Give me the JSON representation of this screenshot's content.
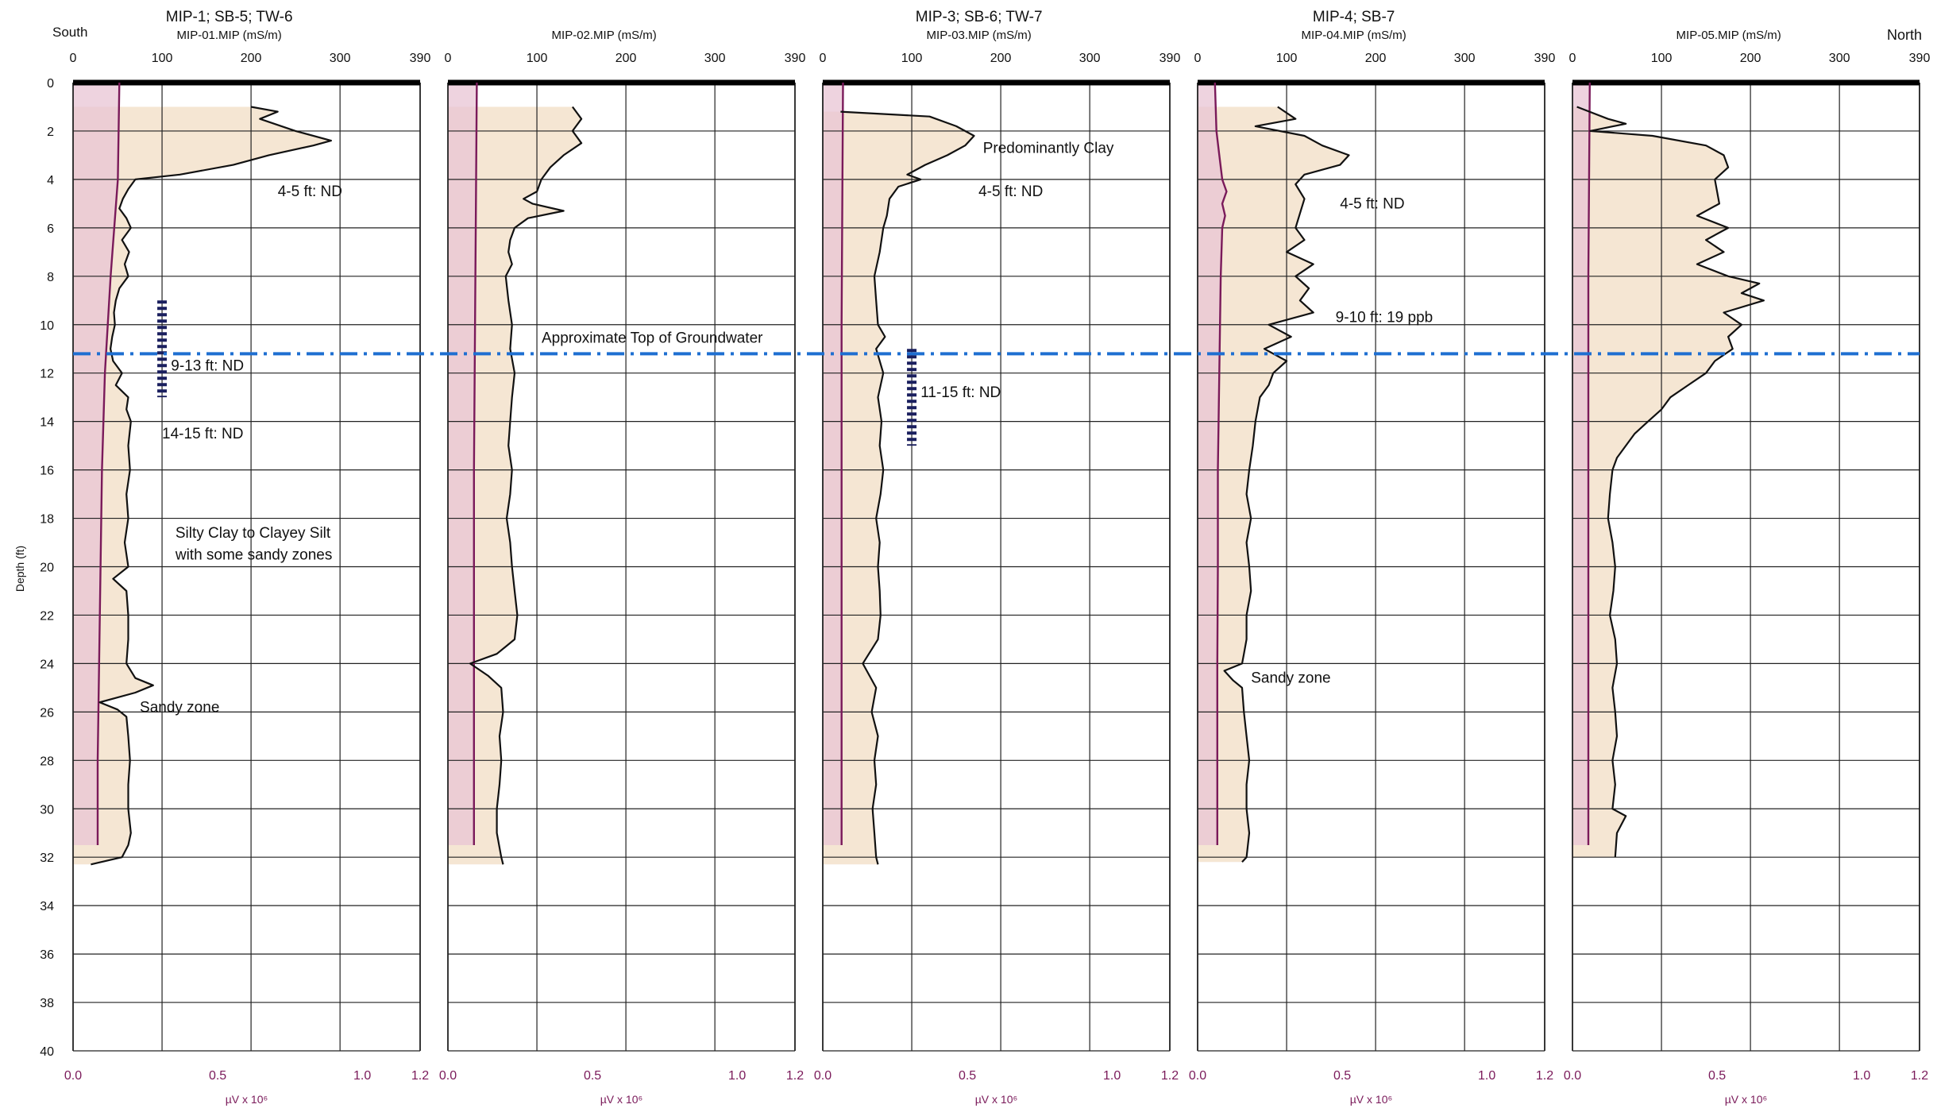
{
  "figure": {
    "south_label": "South",
    "north_label": "North",
    "depth_axis_label": "Depth (ft)",
    "colors": {
      "conductivity_fill": "#f5e6d3",
      "conductivity_line": "#111111",
      "pid_fill": "#e8c4d4",
      "pid_line": "#7a1a5a",
      "groundwater_line": "#1f6fd1",
      "interval_marker": "#1a1f5e",
      "secondary_axis_text": "#7a1a5a"
    },
    "groundwater_label": "Approximate Top of Groundwater"
  },
  "chart_data": {
    "type": "line",
    "shared_depth_axis": {
      "label": "Depth (ft)",
      "range": [
        0,
        40
      ],
      "ticks": [
        0,
        2,
        4,
        6,
        8,
        10,
        12,
        14,
        16,
        18,
        20,
        22,
        24,
        26,
        28,
        30,
        32,
        34,
        36,
        38,
        40
      ],
      "direction": "down"
    },
    "top_axis": {
      "range": [
        0,
        390
      ],
      "ticks": [
        0,
        100,
        200,
        300,
        390
      ]
    },
    "bottom_axis": {
      "range": [
        0,
        1.2
      ],
      "ticks": [
        "0.0",
        "0.5",
        "1.0",
        "1.2"
      ],
      "tick_values": [
        0,
        0.5,
        1.0,
        1.2
      ],
      "label": "µV x 10⁶"
    },
    "grid": true,
    "groundwater_depth_ft": 11.2,
    "panels": [
      {
        "title": "MIP-1; SB-5; TW-6",
        "axis_title": "MIP-01.MIP (mS/m)",
        "conductivity": {
          "depth": [
            1,
            1.2,
            1.5,
            2,
            2.4,
            2.6,
            3,
            3.4,
            3.8,
            4,
            4.4,
            4.8,
            5.2,
            5.6,
            6,
            6.5,
            7,
            7.5,
            8,
            8.5,
            9,
            9.5,
            10,
            10.5,
            11,
            11.5,
            12,
            12.5,
            13,
            13.5,
            14,
            15,
            16,
            17,
            18,
            19,
            20,
            20.5,
            21,
            22,
            23,
            24,
            24.6,
            24.9,
            25.2,
            25.6,
            25.9,
            26.2,
            27,
            28,
            29,
            30,
            31,
            31.5,
            32,
            32.3
          ],
          "value": [
            200,
            230,
            210,
            250,
            290,
            270,
            220,
            180,
            120,
            70,
            62,
            56,
            52,
            60,
            65,
            55,
            63,
            58,
            62,
            52,
            48,
            46,
            47,
            44,
            42,
            45,
            55,
            48,
            62,
            60,
            65,
            62,
            64,
            60,
            62,
            58,
            62,
            45,
            60,
            62,
            62,
            60,
            70,
            90,
            70,
            30,
            50,
            60,
            62,
            64,
            62,
            62,
            65,
            62,
            55,
            20
          ]
        },
        "pid": {
          "depth": [
            0,
            4,
            8,
            12,
            16,
            20,
            24,
            28,
            31.5
          ],
          "value": [
            0.16,
            0.155,
            0.13,
            0.11,
            0.1,
            0.095,
            0.09,
            0.085,
            0.085
          ]
        },
        "interval_markers": [
          {
            "top": 9,
            "bottom": 13
          }
        ],
        "annotations": [
          {
            "text": "4-5 ft: ND",
            "depth": 4.5,
            "value": 230
          },
          {
            "text": "9-13 ft: ND",
            "depth": 11.7,
            "value": 110
          },
          {
            "text": "14-15 ft: ND",
            "depth": 14.5,
            "value": 100
          },
          {
            "text": "Silty Clay to Clayey Silt",
            "depth": 18.6,
            "value": 115
          },
          {
            "text": "with some sandy zones",
            "depth": 19.5,
            "value": 115
          },
          {
            "text": "Sandy zone",
            "depth": 25.8,
            "value": 75
          }
        ]
      },
      {
        "title": "",
        "axis_title": "MIP-02.MIP (mS/m)",
        "conductivity": {
          "depth": [
            1,
            1.5,
            2,
            2.5,
            3,
            3.5,
            4,
            4.5,
            4.8,
            5,
            5.3,
            5.6,
            6,
            6.5,
            7,
            7.5,
            8,
            9,
            10,
            11,
            12,
            13,
            14,
            15,
            16,
            17,
            18,
            19,
            20,
            21,
            22,
            23,
            23.6,
            24,
            24.5,
            25,
            26,
            27,
            28,
            29,
            30,
            31,
            32,
            32.3
          ],
          "value": [
            140,
            150,
            140,
            150,
            130,
            115,
            105,
            100,
            85,
            95,
            130,
            90,
            75,
            70,
            68,
            72,
            65,
            68,
            72,
            70,
            75,
            72,
            70,
            68,
            72,
            70,
            66,
            70,
            72,
            75,
            78,
            75,
            55,
            25,
            45,
            60,
            62,
            58,
            60,
            58,
            55,
            55,
            60,
            62
          ]
        },
        "pid": {
          "depth": [
            0,
            8,
            16,
            24,
            31.5
          ],
          "value": [
            0.1,
            0.095,
            0.09,
            0.09,
            0.09
          ]
        },
        "interval_markers": [],
        "annotations": []
      },
      {
        "title": "MIP-3; SB-6; TW-7",
        "axis_title": "MIP-03.MIP (mS/m)",
        "conductivity": {
          "depth": [
            1.2,
            1.4,
            1.8,
            2.2,
            2.6,
            3,
            3.4,
            3.8,
            4,
            4.3,
            4.8,
            5.5,
            6,
            7,
            8,
            9,
            10,
            10.5,
            11,
            12,
            13,
            14,
            15,
            16,
            17,
            18,
            19,
            20,
            21,
            22,
            23,
            24,
            25,
            26,
            27,
            28,
            29,
            30,
            31,
            32,
            32.3
          ],
          "value": [
            20,
            120,
            150,
            170,
            160,
            140,
            115,
            95,
            110,
            85,
            75,
            72,
            68,
            64,
            58,
            60,
            62,
            70,
            60,
            68,
            62,
            66,
            64,
            68,
            65,
            60,
            64,
            62,
            64,
            65,
            62,
            45,
            60,
            55,
            62,
            58,
            60,
            56,
            58,
            60,
            62
          ]
        },
        "pid": {
          "depth": [
            0,
            10,
            20,
            31.5
          ],
          "value": [
            0.07,
            0.065,
            0.065,
            0.065
          ]
        },
        "interval_markers": [
          {
            "top": 11,
            "bottom": 15
          }
        ],
        "annotations": [
          {
            "text": "Predominantly Clay",
            "depth": 2.7,
            "value": 180
          },
          {
            "text": "4-5 ft: ND",
            "depth": 4.5,
            "value": 175
          },
          {
            "text": "11-15 ft: ND",
            "depth": 12.8,
            "value": 110
          }
        ]
      },
      {
        "title": "MIP-4; SB-7",
        "axis_title": "MIP-04.MIP (mS/m)",
        "conductivity": {
          "depth": [
            1,
            1.5,
            1.8,
            2.2,
            2.6,
            3,
            3.4,
            3.8,
            4.2,
            4.8,
            5.4,
            6,
            6.5,
            7,
            7.5,
            8,
            8.5,
            9,
            9.5,
            10,
            10.5,
            11,
            11.5,
            12,
            12.5,
            13,
            14,
            15,
            16,
            17,
            18,
            19,
            20,
            21,
            22,
            23,
            23.6,
            24,
            24.3,
            24.7,
            25,
            26,
            27,
            28,
            29,
            30,
            31,
            32,
            32.2
          ],
          "value": [
            90,
            110,
            65,
            120,
            140,
            170,
            160,
            120,
            110,
            120,
            115,
            110,
            120,
            100,
            130,
            110,
            125,
            115,
            130,
            80,
            105,
            75,
            100,
            85,
            80,
            70,
            65,
            62,
            58,
            55,
            60,
            55,
            58,
            60,
            55,
            55,
            52,
            50,
            30,
            40,
            50,
            52,
            55,
            58,
            55,
            55,
            58,
            55,
            50
          ]
        },
        "pid": {
          "depth": [
            0,
            2,
            3,
            4,
            4.5,
            5,
            5.5,
            6,
            8,
            12,
            16,
            20,
            24,
            28,
            31.5
          ],
          "value": [
            0.06,
            0.065,
            0.075,
            0.085,
            0.1,
            0.085,
            0.095,
            0.085,
            0.08,
            0.075,
            0.07,
            0.07,
            0.068,
            0.068,
            0.068
          ]
        },
        "interval_markers": [],
        "annotations": [
          {
            "text": "4-5 ft: ND",
            "depth": 5,
            "value": 160
          },
          {
            "text": "9-10 ft: 19 ppb",
            "depth": 9.7,
            "value": 155
          },
          {
            "text": "Sandy zone",
            "depth": 24.6,
            "value": 60
          }
        ]
      },
      {
        "title": "",
        "axis_title": "MIP-05.MIP (mS/m)",
        "conductivity": {
          "depth": [
            1,
            1.5,
            1.7,
            2,
            2.2,
            2.6,
            3,
            3.5,
            4,
            5,
            5.5,
            6,
            6.5,
            7,
            7.5,
            8,
            8.3,
            8.7,
            9,
            9.5,
            10,
            10.5,
            11,
            11.5,
            12,
            12.5,
            13,
            13.5,
            14,
            14.5,
            15,
            15.5,
            16,
            17,
            18,
            19,
            20,
            21,
            22,
            23,
            24,
            25,
            26,
            27,
            28,
            29,
            30,
            30.3,
            31,
            32
          ],
          "value": [
            5,
            40,
            60,
            20,
            90,
            150,
            170,
            175,
            160,
            165,
            140,
            175,
            150,
            170,
            140,
            175,
            210,
            190,
            215,
            170,
            190,
            175,
            180,
            160,
            150,
            130,
            110,
            100,
            85,
            70,
            60,
            50,
            45,
            42,
            40,
            45,
            48,
            46,
            42,
            48,
            50,
            45,
            48,
            50,
            45,
            48,
            45,
            60,
            50,
            48
          ]
        },
        "pid": {
          "depth": [
            0,
            8,
            16,
            24,
            31.5
          ],
          "value": [
            0.06,
            0.055,
            0.055,
            0.055,
            0.055
          ]
        },
        "interval_markers": [],
        "annotations": []
      }
    ]
  }
}
